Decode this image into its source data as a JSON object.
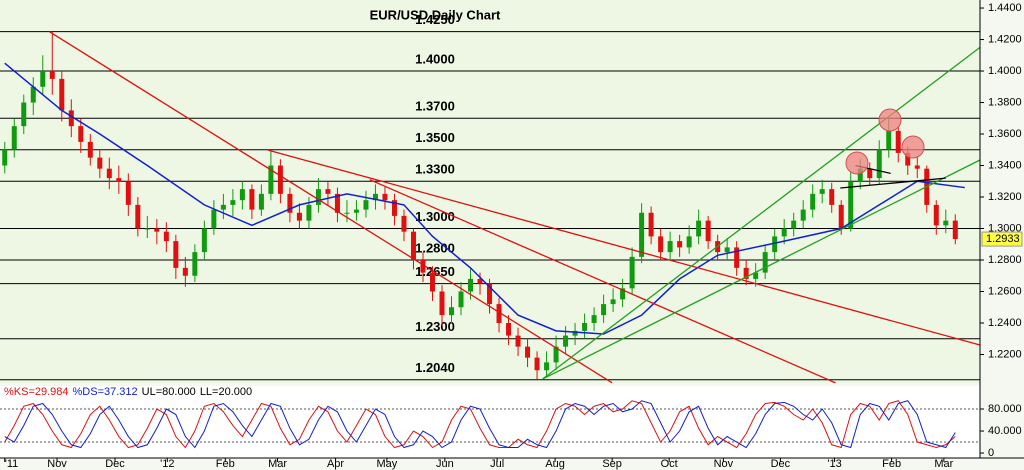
{
  "chart_data": [
    {
      "type": "candlestick",
      "title": "EUR/USD Daily Chart",
      "background": "#eef6e4",
      "up_color": "#109a10",
      "down_color": "#e01010",
      "xlim": [
        -0.5,
        102.6
      ],
      "ylim": [
        1.2019,
        1.4451
      ],
      "yticks": [
        {
          "value": 1.44,
          "label": "1.4400"
        },
        {
          "value": 1.42,
          "label": "1.4200"
        },
        {
          "value": 1.4,
          "label": "1.4000"
        },
        {
          "value": 1.38,
          "label": "1.3800"
        },
        {
          "value": 1.36,
          "label": "1.3600"
        },
        {
          "value": 1.34,
          "label": "1.3400"
        },
        {
          "value": 1.32,
          "label": "1.3200"
        },
        {
          "value": 1.3,
          "label": "1.3000"
        },
        {
          "value": 1.28,
          "label": "1.2800"
        },
        {
          "value": 1.26,
          "label": "1.2600"
        },
        {
          "value": 1.24,
          "label": "1.2400"
        },
        {
          "value": 1.22,
          "label": "1.2200"
        }
      ],
      "levels": [
        {
          "value": 1.425,
          "label": "1.4250"
        },
        {
          "value": 1.4,
          "label": "1.4000"
        },
        {
          "value": 1.37,
          "label": "1.3700"
        },
        {
          "value": 1.35,
          "label": "1.3500"
        },
        {
          "value": 1.33,
          "label": "1.3300"
        },
        {
          "value": 1.3,
          "label": "1.3000"
        },
        {
          "value": 1.28,
          "label": "1.2800"
        },
        {
          "value": 1.265,
          "label": "1.2650"
        },
        {
          "value": 1.23,
          "label": "1.2300"
        },
        {
          "value": 1.204,
          "label": "1.2040"
        }
      ],
      "open": [
        1.34,
        1.35,
        1.365,
        1.38,
        1.39,
        1.4,
        1.395,
        1.375,
        1.365,
        1.355,
        1.345,
        1.338,
        1.332,
        1.33,
        1.315,
        1.3,
        1.3,
        1.298,
        1.292,
        1.275,
        1.27,
        1.285,
        1.3,
        1.312,
        1.315,
        1.318,
        1.325,
        1.312,
        1.322,
        1.34,
        1.322,
        1.31,
        1.305,
        1.315,
        1.325,
        1.322,
        1.31,
        1.31,
        1.312,
        1.318,
        1.322,
        1.318,
        1.308,
        1.298,
        1.28,
        1.272,
        1.26,
        1.245,
        1.25,
        1.26,
        1.268,
        1.265,
        1.252,
        1.24,
        1.232,
        1.225,
        1.218,
        1.21,
        1.215,
        1.225,
        1.232,
        1.235,
        1.24,
        1.245,
        1.252,
        1.255,
        1.262,
        1.282,
        1.31,
        1.295,
        1.285,
        1.292,
        1.288,
        1.295,
        1.305,
        1.292,
        1.285,
        1.288,
        1.275,
        1.268,
        1.272,
        1.285,
        1.295,
        1.3,
        1.305,
        1.312,
        1.322,
        1.325,
        1.315,
        1.3,
        1.33,
        1.338,
        1.332,
        1.35,
        1.362,
        1.348,
        1.34,
        1.338,
        1.315,
        1.302,
        1.305
      ],
      "high": [
        1.355,
        1.37,
        1.385,
        1.396,
        1.41,
        1.425,
        1.4,
        1.382,
        1.37,
        1.36,
        1.35,
        1.345,
        1.34,
        1.335,
        1.32,
        1.308,
        1.306,
        1.304,
        1.296,
        1.282,
        1.29,
        1.305,
        1.318,
        1.322,
        1.325,
        1.33,
        1.328,
        1.328,
        1.349,
        1.344,
        1.326,
        1.316,
        1.32,
        1.332,
        1.33,
        1.326,
        1.318,
        1.318,
        1.324,
        1.328,
        1.327,
        1.322,
        1.312,
        1.3,
        1.285,
        1.276,
        1.264,
        1.257,
        1.266,
        1.275,
        1.272,
        1.268,
        1.256,
        1.245,
        1.237,
        1.23,
        1.222,
        1.222,
        1.232,
        1.238,
        1.24,
        1.246,
        1.25,
        1.258,
        1.262,
        1.268,
        1.288,
        1.316,
        1.314,
        1.3,
        1.298,
        1.296,
        1.302,
        1.312,
        1.308,
        1.296,
        1.294,
        1.292,
        1.28,
        1.278,
        1.29,
        1.3,
        1.306,
        1.31,
        1.318,
        1.328,
        1.331,
        1.329,
        1.318,
        1.336,
        1.344,
        1.342,
        1.356,
        1.371,
        1.365,
        1.352,
        1.346,
        1.34,
        1.318,
        1.312,
        1.309
      ],
      "low": [
        1.335,
        1.345,
        1.36,
        1.372,
        1.385,
        1.385,
        1.368,
        1.358,
        1.348,
        1.34,
        1.332,
        1.325,
        1.322,
        1.308,
        1.295,
        1.294,
        1.29,
        1.285,
        1.268,
        1.263,
        1.266,
        1.28,
        1.296,
        1.306,
        1.308,
        1.312,
        1.306,
        1.308,
        1.318,
        1.316,
        1.304,
        1.3,
        1.3,
        1.31,
        1.315,
        1.304,
        1.304,
        1.305,
        1.307,
        1.312,
        1.312,
        1.302,
        1.292,
        1.274,
        1.266,
        1.254,
        1.238,
        1.24,
        1.245,
        1.255,
        1.258,
        1.246,
        1.234,
        1.226,
        1.219,
        1.212,
        1.204,
        1.206,
        1.21,
        1.22,
        1.226,
        1.23,
        1.235,
        1.24,
        1.247,
        1.25,
        1.258,
        1.278,
        1.29,
        1.28,
        1.28,
        1.282,
        1.284,
        1.29,
        1.287,
        1.28,
        1.28,
        1.27,
        1.264,
        1.263,
        1.268,
        1.28,
        1.29,
        1.295,
        1.3,
        1.307,
        1.316,
        1.31,
        1.296,
        1.298,
        1.325,
        1.327,
        1.328,
        1.345,
        1.342,
        1.334,
        1.332,
        1.31,
        1.296,
        1.297,
        1.29
      ],
      "close": [
        1.35,
        1.365,
        1.38,
        1.39,
        1.4,
        1.395,
        1.375,
        1.365,
        1.355,
        1.345,
        1.338,
        1.332,
        1.33,
        1.315,
        1.3,
        1.3,
        1.298,
        1.292,
        1.275,
        1.27,
        1.285,
        1.3,
        1.312,
        1.315,
        1.318,
        1.325,
        1.312,
        1.322,
        1.34,
        1.322,
        1.31,
        1.305,
        1.315,
        1.325,
        1.322,
        1.31,
        1.31,
        1.312,
        1.318,
        1.322,
        1.318,
        1.308,
        1.298,
        1.28,
        1.272,
        1.26,
        1.245,
        1.25,
        1.26,
        1.268,
        1.265,
        1.252,
        1.24,
        1.232,
        1.225,
        1.218,
        1.21,
        1.215,
        1.225,
        1.232,
        1.235,
        1.24,
        1.245,
        1.252,
        1.255,
        1.262,
        1.282,
        1.31,
        1.295,
        1.285,
        1.292,
        1.288,
        1.295,
        1.305,
        1.292,
        1.285,
        1.288,
        1.275,
        1.268,
        1.272,
        1.285,
        1.295,
        1.3,
        1.305,
        1.312,
        1.322,
        1.325,
        1.315,
        1.3,
        1.33,
        1.338,
        1.332,
        1.35,
        1.362,
        1.348,
        1.34,
        1.338,
        1.315,
        1.302,
        1.305,
        1.2933
      ],
      "ma": {
        "color": "#1020d0",
        "x": [
          0,
          3,
          6,
          10,
          15,
          21,
          26,
          31,
          36,
          42,
          45,
          49,
          54,
          58,
          63,
          67,
          71,
          75,
          82,
          88,
          92,
          96,
          101
        ],
        "values": [
          1.405,
          1.39,
          1.375,
          1.36,
          1.34,
          1.315,
          1.302,
          1.315,
          1.322,
          1.315,
          1.295,
          1.275,
          1.245,
          1.235,
          1.233,
          1.245,
          1.268,
          1.283,
          1.292,
          1.3,
          1.315,
          1.33,
          1.326
        ]
      },
      "trendlines": [
        {
          "color": "#e01010",
          "x": [
            4.7,
            63.9
          ],
          "y": [
            1.425,
            1.202
          ]
        },
        {
          "color": "#e01010",
          "x": [
            27.7,
            102.6
          ],
          "y": [
            1.3498,
            1.226
          ]
        },
        {
          "color": "#e01010",
          "x": [
            38.4,
            87.4
          ],
          "y": [
            1.331,
            1.202
          ]
        },
        {
          "color": "#20a020",
          "x": [
            56.6,
            102.6
          ],
          "y": [
            1.2045,
            1.415
          ]
        },
        {
          "color": "#20a020",
          "x": [
            56.6,
            102.6
          ],
          "y": [
            1.2045,
            1.3435
          ]
        },
        {
          "color": "#000000",
          "x": [
            87.9,
            99
          ],
          "y": [
            1.3257,
            1.332
          ]
        },
        {
          "color": "#000000",
          "x": [
            89.5,
            93.2
          ],
          "y": [
            1.34,
            1.335
          ]
        }
      ]
    },
    {
      "type": "line",
      "xlim": [
        -0.5,
        102.6
      ],
      "ylim": [
        -9,
        100
      ],
      "yticks": [
        {
          "value": 80,
          "label": "80.000"
        },
        {
          "value": 40,
          "label": "40.000"
        },
        0
      ],
      "bands": [
        {
          "value": 80,
          "label": "UL=80.000"
        },
        {
          "value": 20,
          "label": "LL=20.000"
        }
      ],
      "xticks": [
        {
          "value": 0,
          "label": "'11"
        },
        {
          "value": 5.5,
          "label": "Nov"
        },
        {
          "value": 11.6,
          "label": "Dec"
        },
        {
          "value": 17.1,
          "label": "'12"
        },
        {
          "value": 23.2,
          "label": "Feb"
        },
        {
          "value": 28.7,
          "label": "Mar"
        },
        {
          "value": 34.8,
          "label": "Apr"
        },
        {
          "value": 40.2,
          "label": "May"
        },
        {
          "value": 46.3,
          "label": "Jun"
        },
        {
          "value": 51.8,
          "label": "Jul"
        },
        {
          "value": 57.9,
          "label": "Aug"
        },
        {
          "value": 63.9,
          "label": "Sep"
        },
        {
          "value": 69.9,
          "label": "Oct"
        },
        {
          "value": 75.6,
          "label": "Nov"
        },
        {
          "value": 81.6,
          "label": "Dec"
        },
        {
          "value": 87.3,
          "label": "'13"
        },
        {
          "value": 93.3,
          "label": "Feb"
        },
        {
          "value": 98.8,
          "label": "Mar"
        }
      ],
      "series": [
        {
          "name": "%KS=29.984",
          "color": "#e01010",
          "values": [
            20,
            50,
            85,
            90,
            70,
            40,
            15,
            10,
            35,
            70,
            85,
            60,
            30,
            10,
            15,
            45,
            80,
            70,
            30,
            10,
            40,
            85,
            90,
            75,
            50,
            30,
            60,
            90,
            85,
            45,
            15,
            25,
            60,
            85,
            75,
            40,
            20,
            50,
            80,
            70,
            30,
            10,
            15,
            40,
            30,
            10,
            20,
            60,
            85,
            80,
            45,
            15,
            10,
            10,
            25,
            15,
            10,
            40,
            80,
            90,
            85,
            70,
            85,
            90,
            75,
            80,
            95,
            90,
            55,
            20,
            40,
            75,
            85,
            45,
            15,
            30,
            20,
            10,
            35,
            70,
            90,
            92,
            85,
            70,
            60,
            80,
            55,
            15,
            10,
            70,
            90,
            85,
            60,
            90,
            95,
            70,
            20,
            15,
            10,
            15,
            29.984
          ]
        },
        {
          "name": "%DS=37.312",
          "color": "#1020d0",
          "values": [
            30,
            20,
            50,
            85,
            90,
            70,
            40,
            15,
            10,
            35,
            70,
            85,
            60,
            30,
            10,
            15,
            45,
            80,
            70,
            30,
            10,
            40,
            85,
            90,
            75,
            50,
            30,
            60,
            90,
            85,
            45,
            15,
            25,
            60,
            85,
            75,
            40,
            20,
            50,
            80,
            70,
            30,
            10,
            15,
            40,
            30,
            10,
            20,
            60,
            85,
            80,
            45,
            15,
            10,
            10,
            25,
            15,
            10,
            40,
            80,
            90,
            85,
            70,
            85,
            90,
            75,
            80,
            95,
            90,
            55,
            20,
            40,
            75,
            85,
            45,
            15,
            30,
            20,
            10,
            35,
            70,
            90,
            92,
            85,
            70,
            60,
            80,
            55,
            15,
            10,
            70,
            90,
            85,
            60,
            90,
            95,
            70,
            20,
            15,
            10,
            37.312
          ]
        }
      ]
    }
  ]
}
